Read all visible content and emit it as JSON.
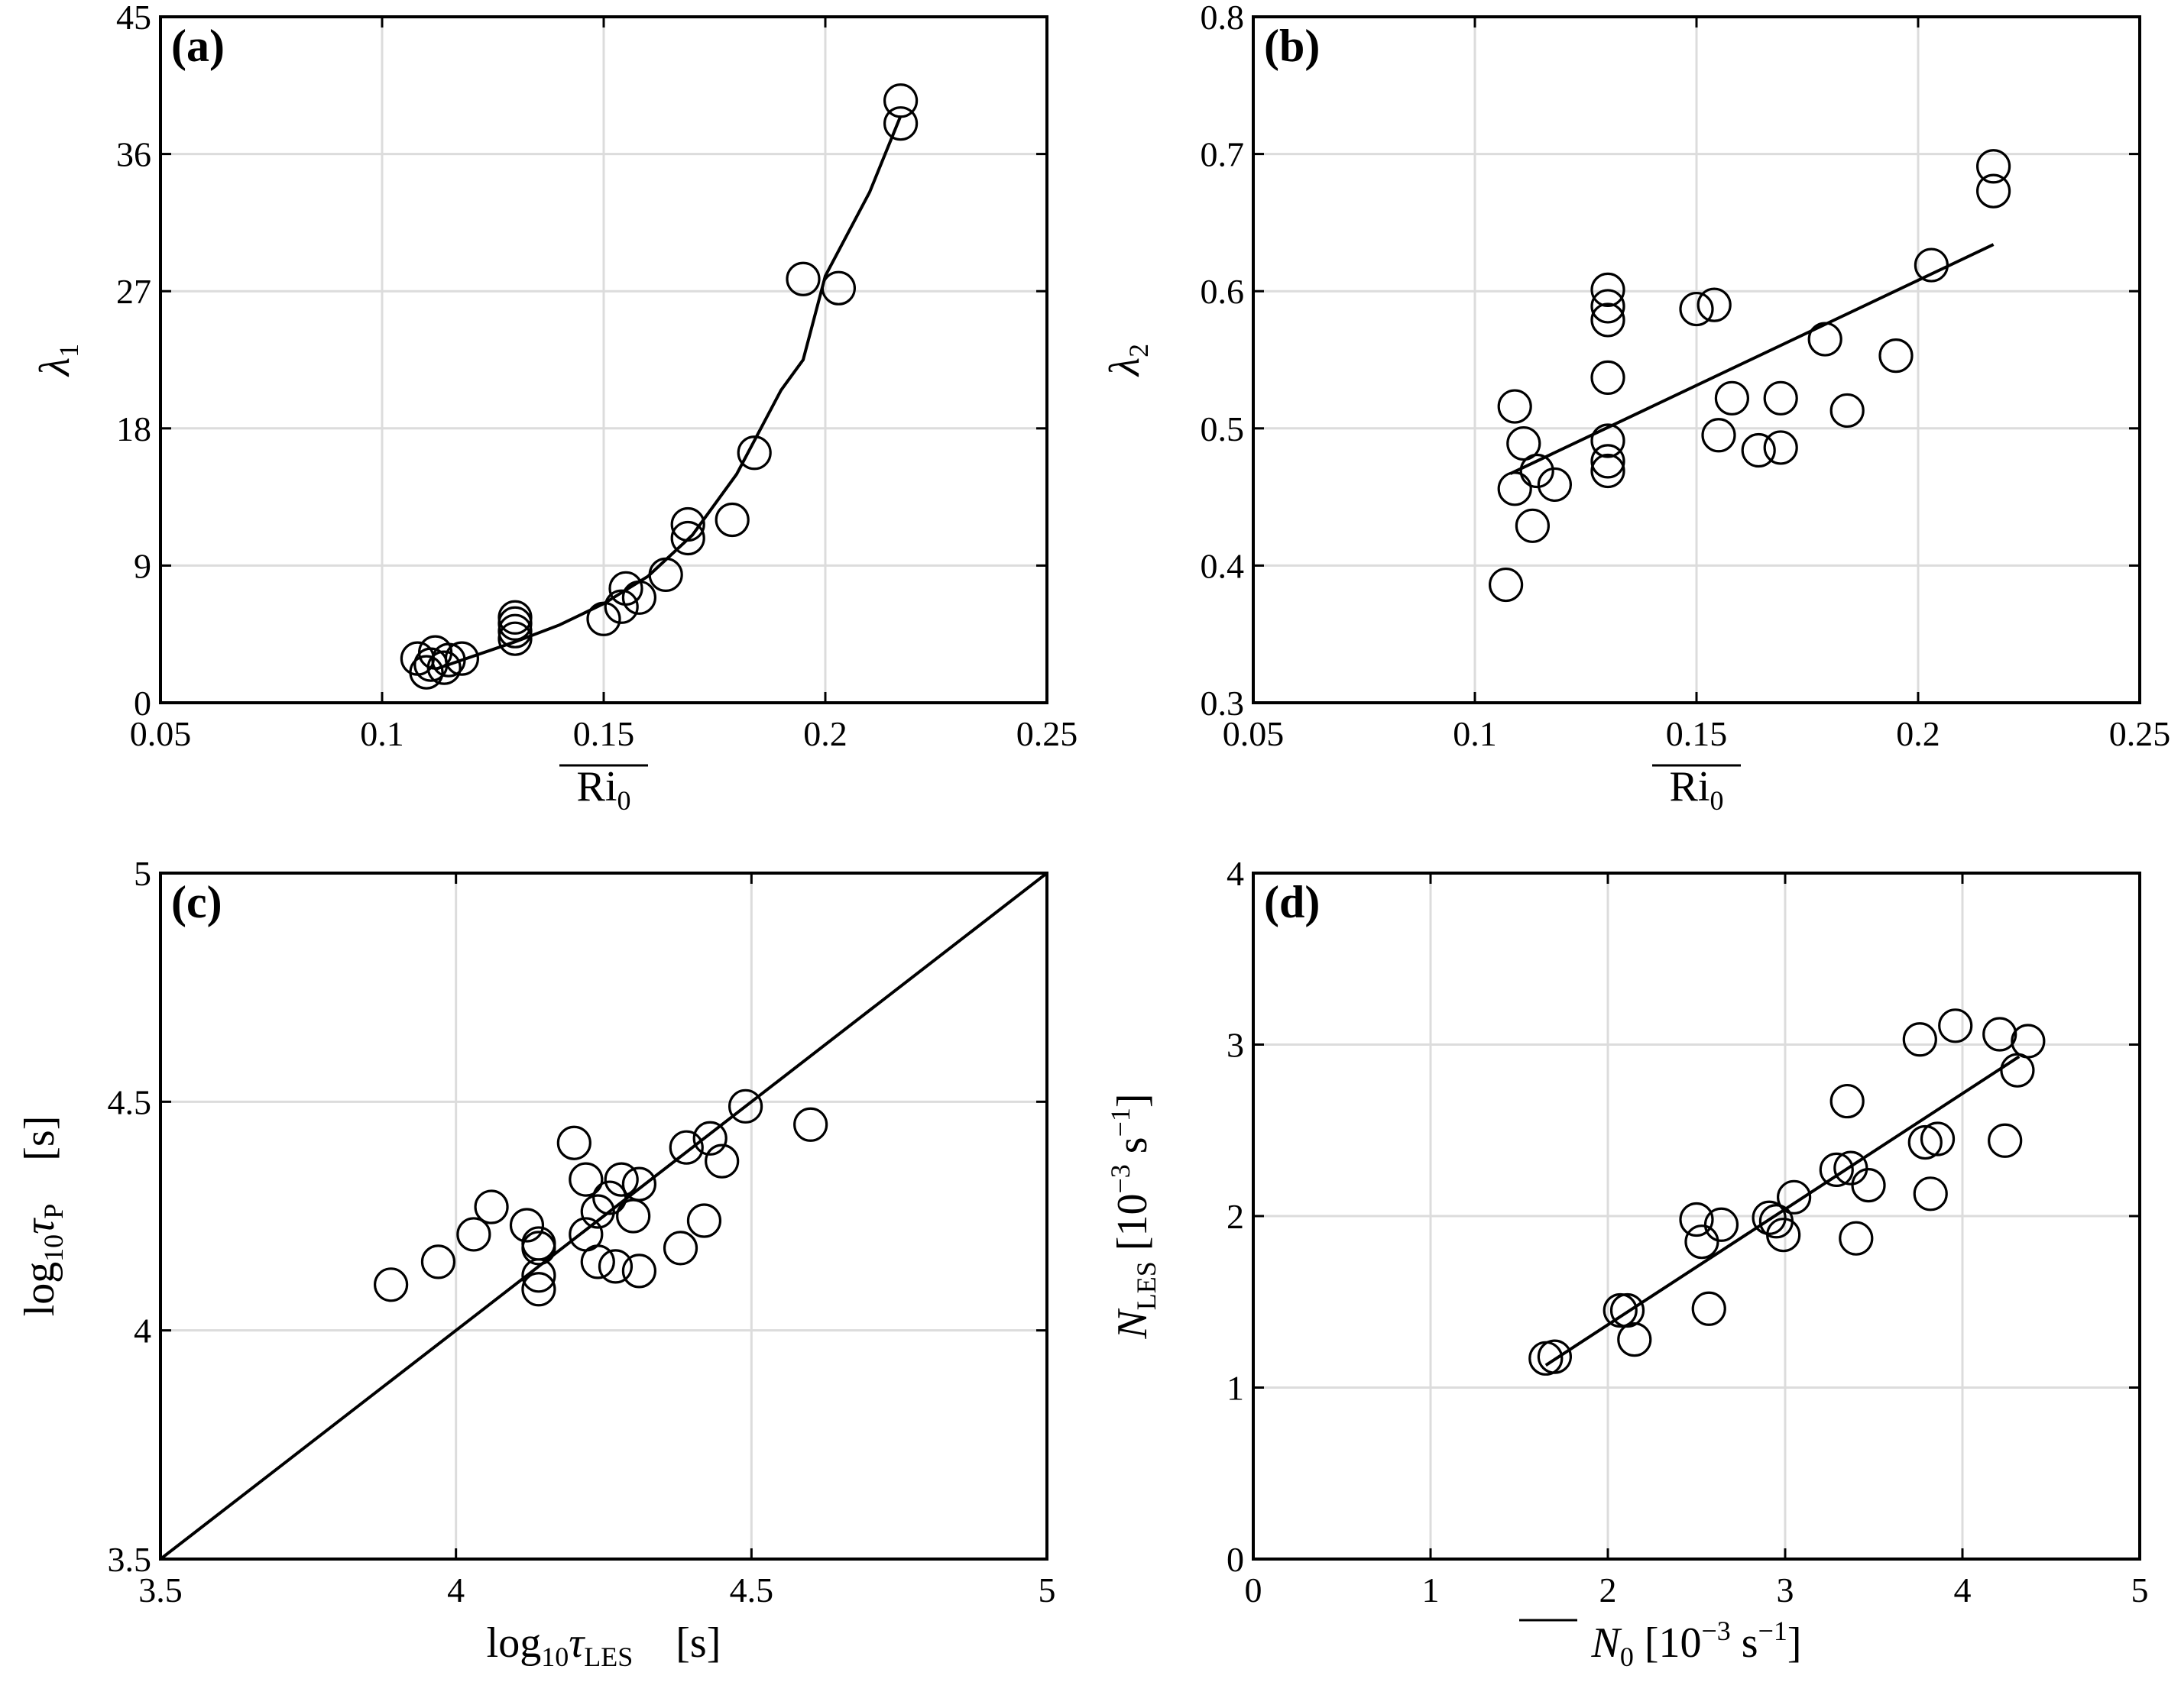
{
  "chart_data": [
    {
      "panel": "(a)",
      "type": "scatter",
      "xlabel": "Ri",
      "xlabel_sub": "0",
      "ylabel": "λ",
      "ylabel_sub": "1",
      "xlim": [
        0.05,
        0.25
      ],
      "ylim": [
        0,
        45
      ],
      "xticks": [
        "0.05",
        "0.1",
        "0.15",
        "0.2",
        "0.25"
      ],
      "yticks": [
        "0",
        "9",
        "18",
        "27",
        "36",
        "45"
      ],
      "grid": true,
      "points": [
        [
          0.108,
          2.9
        ],
        [
          0.11,
          2.0
        ],
        [
          0.111,
          2.5
        ],
        [
          0.112,
          3.3
        ],
        [
          0.114,
          2.3
        ],
        [
          0.115,
          2.8
        ],
        [
          0.118,
          2.9
        ],
        [
          0.13,
          4.2
        ],
        [
          0.13,
          4.7
        ],
        [
          0.13,
          5.2
        ],
        [
          0.13,
          5.6
        ],
        [
          0.15,
          5.5
        ],
        [
          0.154,
          6.3
        ],
        [
          0.155,
          7.5
        ],
        [
          0.158,
          6.9
        ],
        [
          0.164,
          8.4
        ],
        [
          0.169,
          10.8
        ],
        [
          0.169,
          11.7
        ],
        [
          0.179,
          12.0
        ],
        [
          0.184,
          16.4
        ],
        [
          0.195,
          27.8
        ],
        [
          0.203,
          27.2
        ],
        [
          0.217,
          39.5
        ],
        [
          0.217,
          38.0
        ]
      ],
      "fit": [
        [
          0.112,
          2.2
        ],
        [
          0.12,
          3.0
        ],
        [
          0.13,
          4.0
        ],
        [
          0.14,
          5.1
        ],
        [
          0.15,
          6.5
        ],
        [
          0.16,
          8.3
        ],
        [
          0.17,
          11.0
        ],
        [
          0.18,
          15.0
        ],
        [
          0.19,
          20.5
        ],
        [
          0.195,
          22.5
        ],
        [
          0.2,
          28.0
        ],
        [
          0.21,
          33.5
        ],
        [
          0.217,
          38.5
        ]
      ]
    },
    {
      "panel": "(b)",
      "type": "scatter",
      "xlabel": "Ri",
      "xlabel_sub": "0",
      "ylabel": "λ",
      "ylabel_sub": "2",
      "xlim": [
        0.05,
        0.25
      ],
      "ylim": [
        0.3,
        0.8
      ],
      "xticks": [
        "0.05",
        "0.1",
        "0.15",
        "0.2",
        "0.25"
      ],
      "yticks": [
        "0.3",
        "0.4",
        "0.5",
        "0.6",
        "0.7",
        "0.8"
      ],
      "grid": true,
      "points": [
        [
          0.107,
          0.386
        ],
        [
          0.109,
          0.456
        ],
        [
          0.109,
          0.516
        ],
        [
          0.111,
          0.489
        ],
        [
          0.113,
          0.429
        ],
        [
          0.114,
          0.469
        ],
        [
          0.118,
          0.459
        ],
        [
          0.13,
          0.601
        ],
        [
          0.13,
          0.589
        ],
        [
          0.13,
          0.579
        ],
        [
          0.13,
          0.537
        ],
        [
          0.13,
          0.491
        ],
        [
          0.13,
          0.476
        ],
        [
          0.13,
          0.469
        ],
        [
          0.15,
          0.587
        ],
        [
          0.154,
          0.59
        ],
        [
          0.155,
          0.495
        ],
        [
          0.158,
          0.522
        ],
        [
          0.164,
          0.484
        ],
        [
          0.169,
          0.486
        ],
        [
          0.169,
          0.522
        ],
        [
          0.179,
          0.565
        ],
        [
          0.184,
          0.513
        ],
        [
          0.195,
          0.553
        ],
        [
          0.203,
          0.619
        ],
        [
          0.217,
          0.691
        ],
        [
          0.217,
          0.673
        ]
      ],
      "fit": [
        [
          0.108,
          0.467
        ],
        [
          0.217,
          0.634
        ]
      ]
    },
    {
      "panel": "(c)",
      "type": "scatter",
      "xlabel": "log",
      "xlabel_sub": "10",
      "xlabel_var": "τ",
      "xlabel_var_sub": "LES",
      "xlabel_unit": "[s]",
      "ylabel": "log",
      "ylabel_sub": "10",
      "ylabel_var": "τ",
      "ylabel_var_sub": "P",
      "ylabel_unit": "[s]",
      "xlim": [
        3.5,
        5
      ],
      "ylim": [
        3.5,
        5
      ],
      "xticks": [
        "3.5",
        "4",
        "4.5",
        "5"
      ],
      "yticks": [
        "3.5",
        "4",
        "4.5",
        "5"
      ],
      "grid": true,
      "points": [
        [
          3.89,
          4.1
        ],
        [
          3.97,
          4.15
        ],
        [
          4.03,
          4.21
        ],
        [
          4.06,
          4.27
        ],
        [
          4.12,
          4.23
        ],
        [
          4.14,
          4.19
        ],
        [
          4.14,
          4.18
        ],
        [
          4.14,
          4.12
        ],
        [
          4.14,
          4.09
        ],
        [
          4.2,
          4.41
        ],
        [
          4.22,
          4.33
        ],
        [
          4.22,
          4.21
        ],
        [
          4.24,
          4.15
        ],
        [
          4.24,
          4.26
        ],
        [
          4.26,
          4.29
        ],
        [
          4.27,
          4.14
        ],
        [
          4.28,
          4.33
        ],
        [
          4.3,
          4.25
        ],
        [
          4.31,
          4.13
        ],
        [
          4.31,
          4.32
        ],
        [
          4.38,
          4.18
        ],
        [
          4.39,
          4.4
        ],
        [
          4.42,
          4.24
        ],
        [
          4.43,
          4.42
        ],
        [
          4.45,
          4.37
        ],
        [
          4.49,
          4.49
        ],
        [
          4.6,
          4.45
        ]
      ],
      "fit": [
        [
          3.5,
          3.5
        ],
        [
          5,
          5
        ]
      ]
    },
    {
      "panel": "(d)",
      "type": "scatter",
      "xlabel": "N",
      "xlabel_sub": "0",
      "xlabel_unit": "[10",
      "xlabel_unit_sup": "−3",
      "xlabel_unit_tail": " s",
      "xlabel_unit_sup2": "−1",
      "xlabel_unit_end": "]",
      "ylabel": "N",
      "ylabel_sub": "LES",
      "ylabel_unit": "[10",
      "ylabel_unit_sup": "−3",
      "ylabel_unit_tail": " s",
      "ylabel_unit_sup2": "−1",
      "ylabel_unit_end": "]",
      "xlim": [
        0,
        5
      ],
      "ylim": [
        0,
        4
      ],
      "xticks": [
        "0",
        "1",
        "2",
        "3",
        "4",
        "5"
      ],
      "yticks": [
        "0",
        "1",
        "2",
        "3",
        "4"
      ],
      "grid": true,
      "points": [
        [
          1.65,
          1.17
        ],
        [
          1.7,
          1.18
        ],
        [
          2.07,
          1.45
        ],
        [
          2.11,
          1.45
        ],
        [
          2.15,
          1.28
        ],
        [
          2.5,
          1.98
        ],
        [
          2.53,
          1.85
        ],
        [
          2.57,
          1.46
        ],
        [
          2.64,
          1.95
        ],
        [
          2.91,
          1.99
        ],
        [
          2.95,
          1.97
        ],
        [
          2.99,
          1.89
        ],
        [
          3.05,
          2.11
        ],
        [
          3.29,
          2.27
        ],
        [
          3.35,
          2.67
        ],
        [
          3.37,
          2.28
        ],
        [
          3.4,
          1.87
        ],
        [
          3.47,
          2.18
        ],
        [
          3.76,
          3.03
        ],
        [
          3.79,
          2.43
        ],
        [
          3.82,
          2.13
        ],
        [
          3.86,
          2.45
        ],
        [
          3.96,
          3.11
        ],
        [
          4.21,
          3.06
        ],
        [
          4.24,
          2.44
        ],
        [
          4.31,
          2.85
        ],
        [
          4.37,
          3.02
        ]
      ],
      "fit": [
        [
          1.65,
          1.13
        ],
        [
          4.32,
          2.93
        ]
      ]
    }
  ]
}
